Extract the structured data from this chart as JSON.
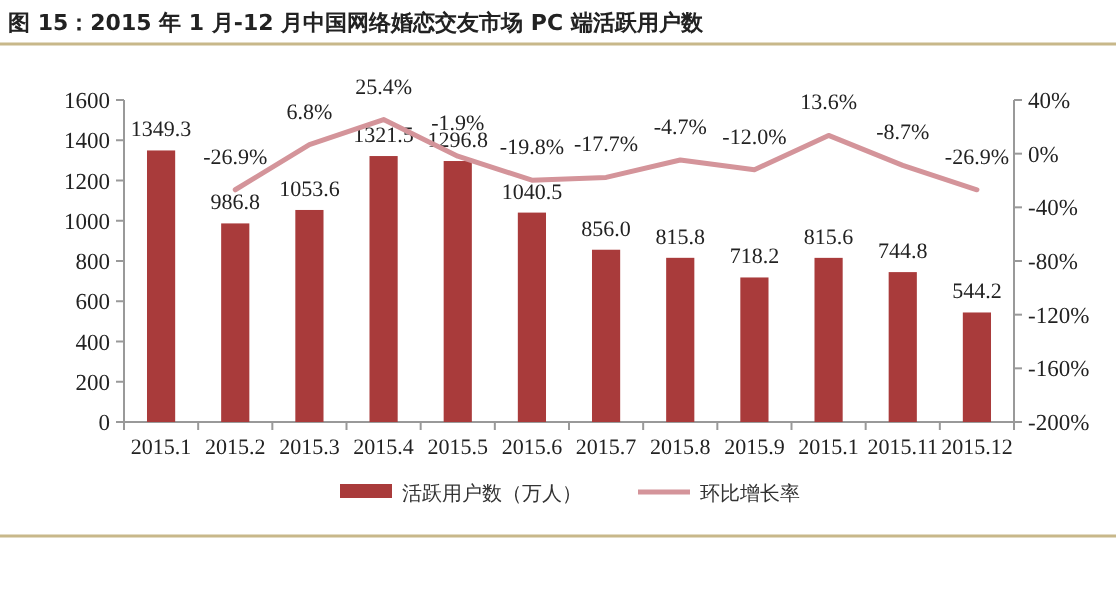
{
  "chart_data": {
    "type": "bar",
    "title": "图 15：2015 年 1 月-12 月中国网络婚恋交友市场 PC 端活跃用户数",
    "categories": [
      "2015.1",
      "2015.2",
      "2015.3",
      "2015.4",
      "2015.5",
      "2015.6",
      "2015.7",
      "2015.8",
      "2015.9",
      "2015.1",
      "2015.11",
      "2015.12"
    ],
    "series": [
      {
        "name": "活跃用户数（万人）",
        "color": "#a93b3b",
        "values": [
          1349.3,
          986.8,
          1053.6,
          1321.5,
          1296.8,
          1040.5,
          856.0,
          815.8,
          718.2,
          815.6,
          744.8,
          544.2
        ],
        "value_labels": [
          "1349.3",
          "986.8",
          "1053.6",
          "1321.5",
          "1296.8",
          "1040.5",
          "856.0",
          "815.8",
          "718.2",
          "815.6",
          "744.8",
          "544.2"
        ]
      },
      {
        "name": "环比增长率",
        "type": "line",
        "axis": "y2",
        "color": "#d4949a",
        "values": [
          null,
          -26.9,
          6.8,
          25.4,
          -1.9,
          -19.8,
          -17.7,
          -4.7,
          -12.0,
          13.6,
          -8.7,
          -26.9
        ],
        "value_labels": [
          null,
          "-26.9%",
          "6.8%",
          "25.4%",
          "-1.9%",
          "-19.8%",
          "-17.7%",
          "-4.7%",
          "-12.0%",
          "13.6%",
          "-8.7%",
          "-26.9%"
        ]
      }
    ],
    "ylim": [
      0,
      1600
    ],
    "yticks": [
      0,
      200,
      400,
      600,
      800,
      1000,
      1200,
      1400,
      1600
    ],
    "y2lim": [
      -200,
      40
    ],
    "y2ticks": [
      {
        "value": -200,
        "label": "-200%"
      },
      {
        "value": -160,
        "label": "-160%"
      },
      {
        "value": -120,
        "label": "-120%"
      },
      {
        "value": -80,
        "label": "-80%"
      },
      {
        "value": -40,
        "label": "-40%"
      },
      {
        "value": 0,
        "label": "0%"
      },
      {
        "value": 40,
        "label": "40%"
      }
    ],
    "grid": false,
    "legend": "bottom"
  }
}
